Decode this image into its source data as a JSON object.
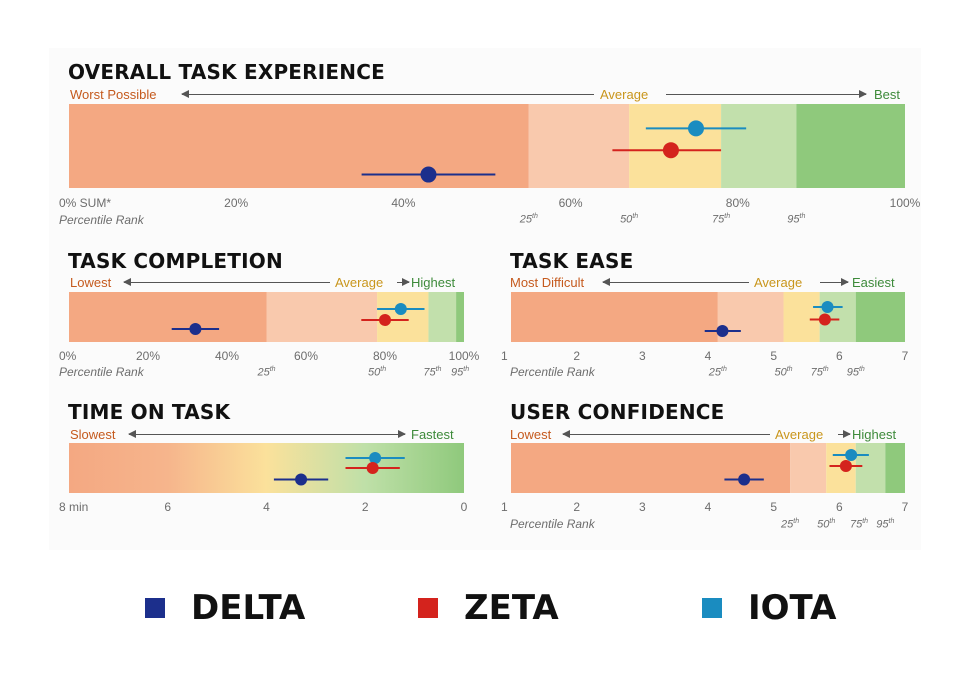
{
  "colors": {
    "delta": "#1c2f8c",
    "zeta": "#d4231d",
    "iota": "#1a8cc0"
  },
  "legend": [
    {
      "key": "delta",
      "label": "DELTA"
    },
    {
      "key": "zeta",
      "label": "ZETA"
    },
    {
      "key": "iota",
      "label": "IOTA"
    }
  ],
  "chart_data": [
    {
      "id": "overall",
      "type": "scatter",
      "title": "OVERALL TASK EXPERIENCE",
      "scale_left": "Worst Possible",
      "scale_mid": "Average",
      "scale_right": "Best",
      "xlim": [
        0,
        100
      ],
      "tick_labels": [
        "0% SUM*",
        "20%",
        "40%",
        "60%",
        "80%",
        "100%"
      ],
      "ticks": [
        0,
        20,
        40,
        60,
        80,
        100
      ],
      "percentile_label": "Percentile Rank",
      "percentiles": [
        {
          "num": "25",
          "sup": "th",
          "at": 55
        },
        {
          "num": "50",
          "sup": "th",
          "at": 67
        },
        {
          "num": "75",
          "sup": "th",
          "at": 78
        },
        {
          "num": "95",
          "sup": "th",
          "at": 87
        }
      ],
      "bands": [
        {
          "to": 55,
          "color": "#f4a882"
        },
        {
          "to": 67,
          "color": "#f9c9ad"
        },
        {
          "to": 78,
          "color": "#fbe19b"
        },
        {
          "to": 87,
          "color": "#c2e0ac"
        },
        {
          "to": 100,
          "color": "#8fc97c"
        }
      ],
      "series": [
        {
          "name": "IOTA",
          "key": "iota",
          "value": 75,
          "ci": [
            69,
            81
          ],
          "row": 0.29
        },
        {
          "name": "ZETA",
          "key": "zeta",
          "value": 72,
          "ci": [
            65,
            78
          ],
          "row": 0.55
        },
        {
          "name": "DELTA",
          "key": "delta",
          "value": 43,
          "ci": [
            35,
            51
          ],
          "row": 0.84
        }
      ]
    },
    {
      "id": "completion",
      "type": "scatter",
      "title": "TASK COMPLETION",
      "scale_left": "Lowest",
      "scale_mid": "Average",
      "scale_right": "Highest",
      "xlim": [
        0,
        100
      ],
      "tick_labels": [
        "0%",
        "20%",
        "40%",
        "60%",
        "80%",
        "100%"
      ],
      "ticks": [
        0,
        20,
        40,
        60,
        80,
        100
      ],
      "percentile_label": "Percentile Rank",
      "percentiles": [
        {
          "num": "25",
          "sup": "th",
          "at": 50
        },
        {
          "num": "50",
          "sup": "th",
          "at": 78
        },
        {
          "num": "75",
          "sup": "th",
          "at": 92
        },
        {
          "num": "95",
          "sup": "th",
          "at": 99
        }
      ],
      "bands": [
        {
          "to": 50,
          "color": "#f4a882"
        },
        {
          "to": 78,
          "color": "#f9c9ad"
        },
        {
          "to": 91,
          "color": "#fbe19b"
        },
        {
          "to": 98,
          "color": "#c2e0ac"
        },
        {
          "to": 100,
          "color": "#8fc97c"
        }
      ],
      "series": [
        {
          "name": "IOTA",
          "key": "iota",
          "value": 84,
          "ci": [
            78,
            90
          ],
          "row": 0.34
        },
        {
          "name": "ZETA",
          "key": "zeta",
          "value": 80,
          "ci": [
            74,
            86
          ],
          "row": 0.56
        },
        {
          "name": "DELTA",
          "key": "delta",
          "value": 32,
          "ci": [
            26,
            38
          ],
          "row": 0.74
        }
      ]
    },
    {
      "id": "ease",
      "type": "scatter",
      "title": "TASK EASE",
      "scale_left": "Most Difficult",
      "scale_mid": "Average",
      "scale_right": "Easiest",
      "xlim": [
        1,
        7
      ],
      "tick_labels": [
        "1",
        "2",
        "3",
        "4",
        "5",
        "6",
        "7"
      ],
      "ticks": [
        1,
        2,
        3,
        4,
        5,
        6,
        7
      ],
      "percentile_label": "Percentile Rank",
      "percentiles": [
        {
          "num": "25",
          "sup": "th",
          "at": 4.15
        },
        {
          "num": "50",
          "sup": "th",
          "at": 5.15
        },
        {
          "num": "75",
          "sup": "th",
          "at": 5.7
        },
        {
          "num": "95",
          "sup": "th",
          "at": 6.25
        }
      ],
      "bands": [
        {
          "to": 4.15,
          "color": "#f4a882"
        },
        {
          "to": 5.15,
          "color": "#f9c9ad"
        },
        {
          "to": 5.7,
          "color": "#fbe19b"
        },
        {
          "to": 6.25,
          "color": "#c2e0ac"
        },
        {
          "to": 7,
          "color": "#8fc97c"
        }
      ],
      "series": [
        {
          "name": "IOTA",
          "key": "iota",
          "value": 5.82,
          "ci": [
            5.6,
            6.05
          ],
          "row": 0.3
        },
        {
          "name": "ZETA",
          "key": "zeta",
          "value": 5.78,
          "ci": [
            5.55,
            6.0
          ],
          "row": 0.55
        },
        {
          "name": "DELTA",
          "key": "delta",
          "value": 4.22,
          "ci": [
            3.95,
            4.5
          ],
          "row": 0.78
        }
      ]
    },
    {
      "id": "time",
      "type": "scatter",
      "title": "TIME ON TASK",
      "scale_left": "Slowest",
      "scale_mid": "",
      "scale_right": "Fastest",
      "xlim": [
        8,
        0
      ],
      "tick_labels": [
        "8 min",
        "6",
        "4",
        "2",
        "0"
      ],
      "ticks": [
        8,
        6,
        4,
        2,
        0
      ],
      "percentile_label": "",
      "percentiles": [],
      "gradient": [
        "#f4a882",
        "#f6b58c",
        "#fbe19b",
        "#bfe0a8",
        "#8fc97c"
      ],
      "series": [
        {
          "name": "IOTA",
          "key": "iota",
          "value": 1.8,
          "ci": [
            1.2,
            2.4
          ],
          "row": 0.3
        },
        {
          "name": "ZETA",
          "key": "zeta",
          "value": 1.85,
          "ci": [
            1.3,
            2.4
          ],
          "row": 0.5
        },
        {
          "name": "DELTA",
          "key": "delta",
          "value": 3.3,
          "ci": [
            2.75,
            3.85
          ],
          "row": 0.73
        }
      ]
    },
    {
      "id": "confidence",
      "type": "scatter",
      "title": "USER CONFIDENCE",
      "scale_left": "Lowest",
      "scale_mid": "Average",
      "scale_right": "Highest",
      "xlim": [
        1,
        7
      ],
      "tick_labels": [
        "1",
        "2",
        "3",
        "4",
        "5",
        "6",
        "7"
      ],
      "ticks": [
        1,
        2,
        3,
        4,
        5,
        6,
        7
      ],
      "percentile_label": "Percentile Rank",
      "percentiles": [
        {
          "num": "25",
          "sup": "th",
          "at": 5.25
        },
        {
          "num": "50",
          "sup": "th",
          "at": 5.8
        },
        {
          "num": "75",
          "sup": "th",
          "at": 6.3
        },
        {
          "num": "95",
          "sup": "th",
          "at": 6.7
        }
      ],
      "bands": [
        {
          "to": 5.25,
          "color": "#f4a882"
        },
        {
          "to": 5.8,
          "color": "#f9c9ad"
        },
        {
          "to": 6.25,
          "color": "#fbe19b"
        },
        {
          "to": 6.7,
          "color": "#c2e0ac"
        },
        {
          "to": 7,
          "color": "#8fc97c"
        }
      ],
      "series": [
        {
          "name": "IOTA",
          "key": "iota",
          "value": 6.18,
          "ci": [
            5.9,
            6.45
          ],
          "row": 0.24
        },
        {
          "name": "ZETA",
          "key": "zeta",
          "value": 6.1,
          "ci": [
            5.85,
            6.35
          ],
          "row": 0.46
        },
        {
          "name": "DELTA",
          "key": "delta",
          "value": 4.55,
          "ci": [
            4.25,
            4.85
          ],
          "row": 0.73
        }
      ]
    }
  ]
}
